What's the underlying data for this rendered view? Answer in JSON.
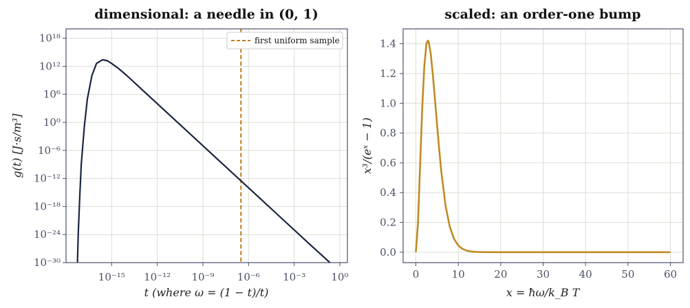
{
  "colors": {
    "dark_curve": "#1a2440",
    "gold_curve": "#c08a22",
    "sample_line": "#c47a1c",
    "grid": "#dcdcd4",
    "frame": "#4a4f6b",
    "tick_text": "#4a4f63"
  },
  "chart_data": [
    {
      "type": "line",
      "title": "dimensional: a needle in (0, 1)",
      "xlabel": "t   (where ω = (1 − t)/t)",
      "ylabel": "g(t)   [J·s/m³]",
      "x_scale": "log",
      "y_scale": "log",
      "x_log10_range": [
        -18,
        0.5
      ],
      "y_log10_range": [
        -30,
        20
      ],
      "x_ticks": [
        {
          "exp": -15,
          "label": "10⁻¹⁵"
        },
        {
          "exp": -12,
          "label": "10⁻¹²"
        },
        {
          "exp": -9,
          "label": "10⁻⁹"
        },
        {
          "exp": -6,
          "label": "10⁻⁶"
        },
        {
          "exp": -3,
          "label": "10⁻³"
        },
        {
          "exp": 0,
          "label": "10⁰"
        }
      ],
      "y_ticks": [
        {
          "exp": 18,
          "label": "10¹⁸"
        },
        {
          "exp": 12,
          "label": "10¹²"
        },
        {
          "exp": 6,
          "label": "10⁶"
        },
        {
          "exp": 0,
          "label": "10⁰"
        },
        {
          "exp": -6,
          "label": "10⁻⁶"
        },
        {
          "exp": -12,
          "label": "10⁻¹²"
        },
        {
          "exp": -18,
          "label": "10⁻¹⁸"
        },
        {
          "exp": -24,
          "label": "10⁻²⁴"
        },
        {
          "exp": -30,
          "label": "10⁻³⁰"
        }
      ],
      "series": [
        {
          "points_log10": [
            [
              -17.25,
              -30
            ],
            [
              -17.2,
              -24
            ],
            [
              -17.1,
              -16
            ],
            [
              -17.0,
              -9
            ],
            [
              -16.8,
              -1
            ],
            [
              -16.6,
              5
            ],
            [
              -16.3,
              10
            ],
            [
              -16.0,
              12.6
            ],
            [
              -15.6,
              13.4
            ],
            [
              -15.3,
              13.2
            ],
            [
              -15.0,
              12.6
            ],
            [
              -14.5,
              11.4
            ],
            [
              -14.0,
              10.0
            ],
            [
              -13.0,
              7.0
            ],
            [
              -12.0,
              4.0
            ],
            [
              -10.0,
              -2.0
            ],
            [
              -8.0,
              -8.0
            ],
            [
              -6.0,
              -14.0
            ],
            [
              -4.0,
              -20.0
            ],
            [
              -2.0,
              -26.0
            ],
            [
              -0.65,
              -30
            ]
          ]
        }
      ],
      "vline": {
        "label": "first uniform sample",
        "x_log10": -6.5
      },
      "legend": "top-right",
      "grid": true
    },
    {
      "type": "line",
      "title": "scaled: an order-one bump",
      "xlabel": "x = ħω/k_B T",
      "ylabel": "x³/(eˣ − 1)",
      "xlim": [
        -3,
        63
      ],
      "ylim": [
        -0.07,
        1.5
      ],
      "x_ticks": [
        {
          "v": 0,
          "label": "0"
        },
        {
          "v": 10,
          "label": "10"
        },
        {
          "v": 20,
          "label": "20"
        },
        {
          "v": 30,
          "label": "30"
        },
        {
          "v": 40,
          "label": "40"
        },
        {
          "v": 50,
          "label": "50"
        },
        {
          "v": 60,
          "label": "60"
        }
      ],
      "y_ticks": [
        {
          "v": 0.0,
          "label": "0.0"
        },
        {
          "v": 0.2,
          "label": "0.2"
        },
        {
          "v": 0.4,
          "label": "0.4"
        },
        {
          "v": 0.6,
          "label": "0.6"
        },
        {
          "v": 0.8,
          "label": "0.8"
        },
        {
          "v": 1.0,
          "label": "1.0"
        },
        {
          "v": 1.2,
          "label": "1.2"
        },
        {
          "v": 1.4,
          "label": "1.4"
        }
      ],
      "series": [
        {
          "x": [
            0.0,
            0.5,
            1.0,
            1.5,
            2.0,
            2.5,
            2.82,
            3.0,
            3.5,
            4.0,
            4.5,
            5.0,
            5.5,
            6.0,
            7.0,
            8.0,
            9.0,
            10.0,
            11.0,
            12.0,
            13.0,
            14.0,
            15.0,
            16.0,
            18.0,
            20.0,
            25.0,
            30.0,
            40.0,
            50.0,
            60.0
          ],
          "y": [
            0.0,
            0.193,
            0.582,
            0.968,
            1.252,
            1.403,
            1.421,
            1.416,
            1.334,
            1.194,
            1.027,
            0.855,
            0.692,
            0.54,
            0.312,
            0.171,
            0.089,
            0.045,
            0.022,
            0.0106,
            0.005,
            0.0023,
            0.001,
            0.0005,
            0.0001,
            0.0,
            0.0,
            0.0,
            0.0,
            0.0,
            0.0
          ]
        }
      ],
      "grid": true
    }
  ]
}
